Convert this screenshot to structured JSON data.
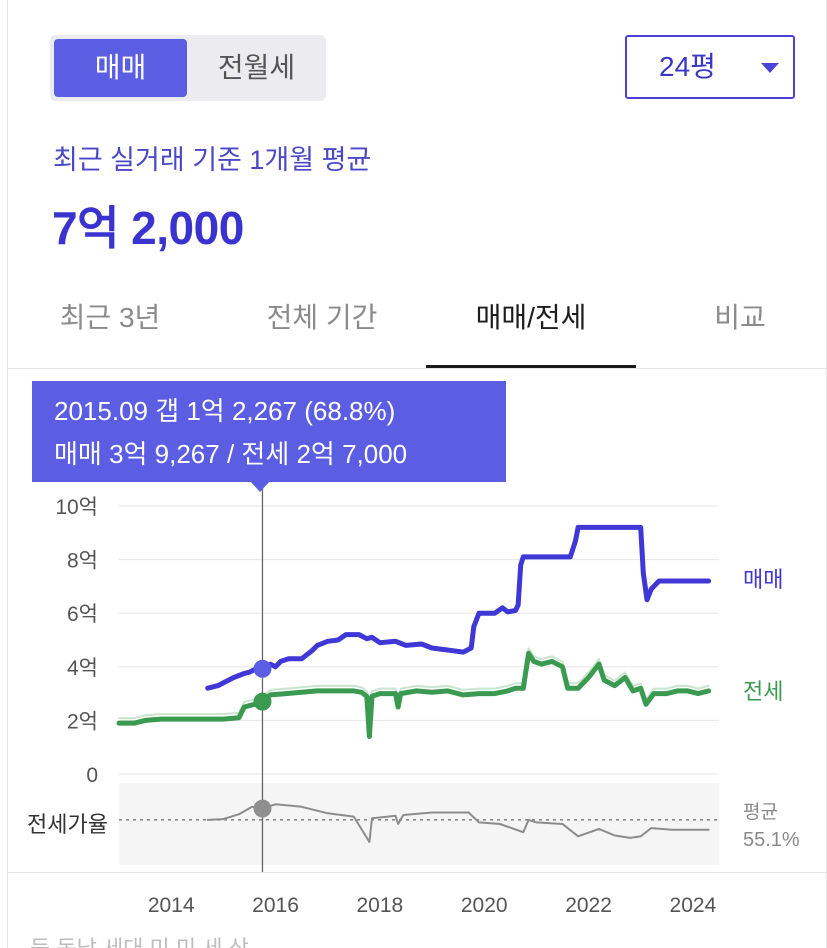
{
  "deal_toggle": {
    "sale": "매매",
    "rent": "전월세",
    "selected": "매매"
  },
  "size_select": {
    "value": "24평"
  },
  "summary": {
    "label": "최근 실거래 기준 1개월 평균",
    "price": "7억 2,000"
  },
  "tabs": [
    {
      "label": "최근 3년"
    },
    {
      "label": "전체 기간"
    },
    {
      "label": "매매/전세"
    },
    {
      "label": "비교"
    }
  ],
  "selected_tab": "매매/전세",
  "tooltip": {
    "line1": "2015.09  갭 1억 2,267 (68.8%)",
    "line2": "매매 3억 9,267 / 전세 2억 7,000"
  },
  "colors": {
    "sale": "#3f37d6",
    "jeonse": "#3a9a4f",
    "ratio": "#8c8c8c",
    "accent": "#5b5de2"
  },
  "chart_data": {
    "type": "line",
    "y_tick_labels": [
      "10억",
      "8억",
      "6억",
      "4억",
      "2억",
      "0"
    ],
    "y_ticks": [
      10,
      8,
      6,
      4,
      2,
      0
    ],
    "ylim": [
      0,
      10
    ],
    "x_tick_labels": [
      "2014",
      "2016",
      "2018",
      "2020",
      "2022",
      "2024"
    ],
    "xlim": [
      2013.0,
      2024.5
    ],
    "series": [
      {
        "name": "매매",
        "points": [
          [
            2014.7,
            3.2
          ],
          [
            2014.9,
            3.3
          ],
          [
            2015.0,
            3.4
          ],
          [
            2015.2,
            3.6
          ],
          [
            2015.4,
            3.75
          ],
          [
            2015.5,
            3.8
          ],
          [
            2015.6,
            3.9
          ],
          [
            2015.75,
            3.93
          ],
          [
            2015.9,
            4.1
          ],
          [
            2016.0,
            4.0
          ],
          [
            2016.1,
            4.2
          ],
          [
            2016.25,
            4.3
          ],
          [
            2016.5,
            4.3
          ],
          [
            2016.7,
            4.6
          ],
          [
            2016.8,
            4.8
          ],
          [
            2017.0,
            4.95
          ],
          [
            2017.2,
            5.0
          ],
          [
            2017.35,
            5.2
          ],
          [
            2017.6,
            5.2
          ],
          [
            2017.75,
            5.05
          ],
          [
            2017.85,
            5.1
          ],
          [
            2018.0,
            4.9
          ],
          [
            2018.3,
            4.95
          ],
          [
            2018.5,
            4.8
          ],
          [
            2018.8,
            4.85
          ],
          [
            2019.0,
            4.7
          ],
          [
            2019.2,
            4.65
          ],
          [
            2019.4,
            4.6
          ],
          [
            2019.6,
            4.55
          ],
          [
            2019.75,
            4.7
          ],
          [
            2019.8,
            5.5
          ],
          [
            2019.9,
            6.0
          ],
          [
            2020.2,
            6.0
          ],
          [
            2020.35,
            6.2
          ],
          [
            2020.45,
            6.05
          ],
          [
            2020.6,
            6.1
          ],
          [
            2020.65,
            6.3
          ],
          [
            2020.7,
            7.8
          ],
          [
            2020.75,
            8.1
          ],
          [
            2021.0,
            8.1
          ],
          [
            2021.4,
            8.1
          ],
          [
            2021.65,
            8.1
          ],
          [
            2021.75,
            8.7
          ],
          [
            2021.8,
            9.2
          ],
          [
            2022.2,
            9.2
          ],
          [
            2022.6,
            9.2
          ],
          [
            2023.0,
            9.2
          ],
          [
            2023.05,
            7.5
          ],
          [
            2023.12,
            6.5
          ],
          [
            2023.2,
            6.9
          ],
          [
            2023.35,
            7.2
          ],
          [
            2023.6,
            7.2
          ],
          [
            2023.9,
            7.2
          ],
          [
            2024.1,
            7.2
          ],
          [
            2024.3,
            7.2
          ]
        ]
      },
      {
        "name": "전세",
        "points": [
          [
            2013.0,
            1.9
          ],
          [
            2013.3,
            1.9
          ],
          [
            2013.5,
            2.0
          ],
          [
            2013.8,
            2.05
          ],
          [
            2014.2,
            2.05
          ],
          [
            2014.6,
            2.05
          ],
          [
            2015.0,
            2.05
          ],
          [
            2015.3,
            2.1
          ],
          [
            2015.4,
            2.5
          ],
          [
            2015.6,
            2.6
          ],
          [
            2015.75,
            2.7
          ],
          [
            2015.9,
            2.95
          ],
          [
            2016.2,
            3.0
          ],
          [
            2016.5,
            3.05
          ],
          [
            2016.8,
            3.1
          ],
          [
            2017.2,
            3.1
          ],
          [
            2017.5,
            3.1
          ],
          [
            2017.65,
            3.05
          ],
          [
            2017.75,
            2.9
          ],
          [
            2017.8,
            1.4
          ],
          [
            2017.85,
            2.9
          ],
          [
            2018.0,
            3.0
          ],
          [
            2018.3,
            3.0
          ],
          [
            2018.35,
            2.5
          ],
          [
            2018.4,
            3.0
          ],
          [
            2018.7,
            3.1
          ],
          [
            2019.0,
            3.05
          ],
          [
            2019.3,
            3.1
          ],
          [
            2019.6,
            2.95
          ],
          [
            2019.9,
            3.0
          ],
          [
            2020.2,
            3.0
          ],
          [
            2020.45,
            3.1
          ],
          [
            2020.6,
            3.2
          ],
          [
            2020.75,
            3.2
          ],
          [
            2020.85,
            4.5
          ],
          [
            2020.95,
            4.2
          ],
          [
            2021.1,
            4.1
          ],
          [
            2021.3,
            4.2
          ],
          [
            2021.5,
            4.0
          ],
          [
            2021.6,
            3.2
          ],
          [
            2021.8,
            3.2
          ],
          [
            2022.0,
            3.6
          ],
          [
            2022.2,
            4.1
          ],
          [
            2022.3,
            3.5
          ],
          [
            2022.5,
            3.3
          ],
          [
            2022.7,
            3.6
          ],
          [
            2022.85,
            3.1
          ],
          [
            2023.0,
            3.2
          ],
          [
            2023.1,
            2.6
          ],
          [
            2023.25,
            3.0
          ],
          [
            2023.5,
            3.0
          ],
          [
            2023.7,
            3.1
          ],
          [
            2023.9,
            3.1
          ],
          [
            2024.1,
            3.0
          ],
          [
            2024.3,
            3.1
          ]
        ]
      },
      {
        "name": "전세가율",
        "points": [
          [
            2014.7,
            0.55
          ],
          [
            2015.0,
            0.56
          ],
          [
            2015.3,
            0.62
          ],
          [
            2015.55,
            0.71
          ],
          [
            2015.75,
            0.69
          ],
          [
            2016.0,
            0.74
          ],
          [
            2016.5,
            0.71
          ],
          [
            2017.0,
            0.63
          ],
          [
            2017.5,
            0.59
          ],
          [
            2017.8,
            0.28
          ],
          [
            2017.85,
            0.57
          ],
          [
            2018.3,
            0.6
          ],
          [
            2018.35,
            0.5
          ],
          [
            2018.45,
            0.61
          ],
          [
            2019.0,
            0.64
          ],
          [
            2019.7,
            0.64
          ],
          [
            2019.9,
            0.52
          ],
          [
            2020.3,
            0.5
          ],
          [
            2020.75,
            0.4
          ],
          [
            2020.85,
            0.55
          ],
          [
            2021.0,
            0.52
          ],
          [
            2021.5,
            0.5
          ],
          [
            2021.8,
            0.35
          ],
          [
            2022.2,
            0.44
          ],
          [
            2022.5,
            0.36
          ],
          [
            2022.8,
            0.33
          ],
          [
            2023.0,
            0.35
          ],
          [
            2023.1,
            0.4
          ],
          [
            2023.2,
            0.45
          ],
          [
            2023.6,
            0.43
          ],
          [
            2024.0,
            0.43
          ],
          [
            2024.3,
            0.43
          ]
        ]
      }
    ],
    "selected_point": {
      "date": "2015.09",
      "x": 2015.75,
      "sale": 3.9267,
      "jeonse": 2.7,
      "ratio": 0.688
    },
    "average_ratio": 0.551,
    "legend": {
      "sale": "매매",
      "jeonse": "전세"
    },
    "ratio_axis_label": "전세가율",
    "average_label": "평균",
    "average_value": "55.1%"
  },
  "footnote": "등     동남 세대     미 미 세 상 ..."
}
